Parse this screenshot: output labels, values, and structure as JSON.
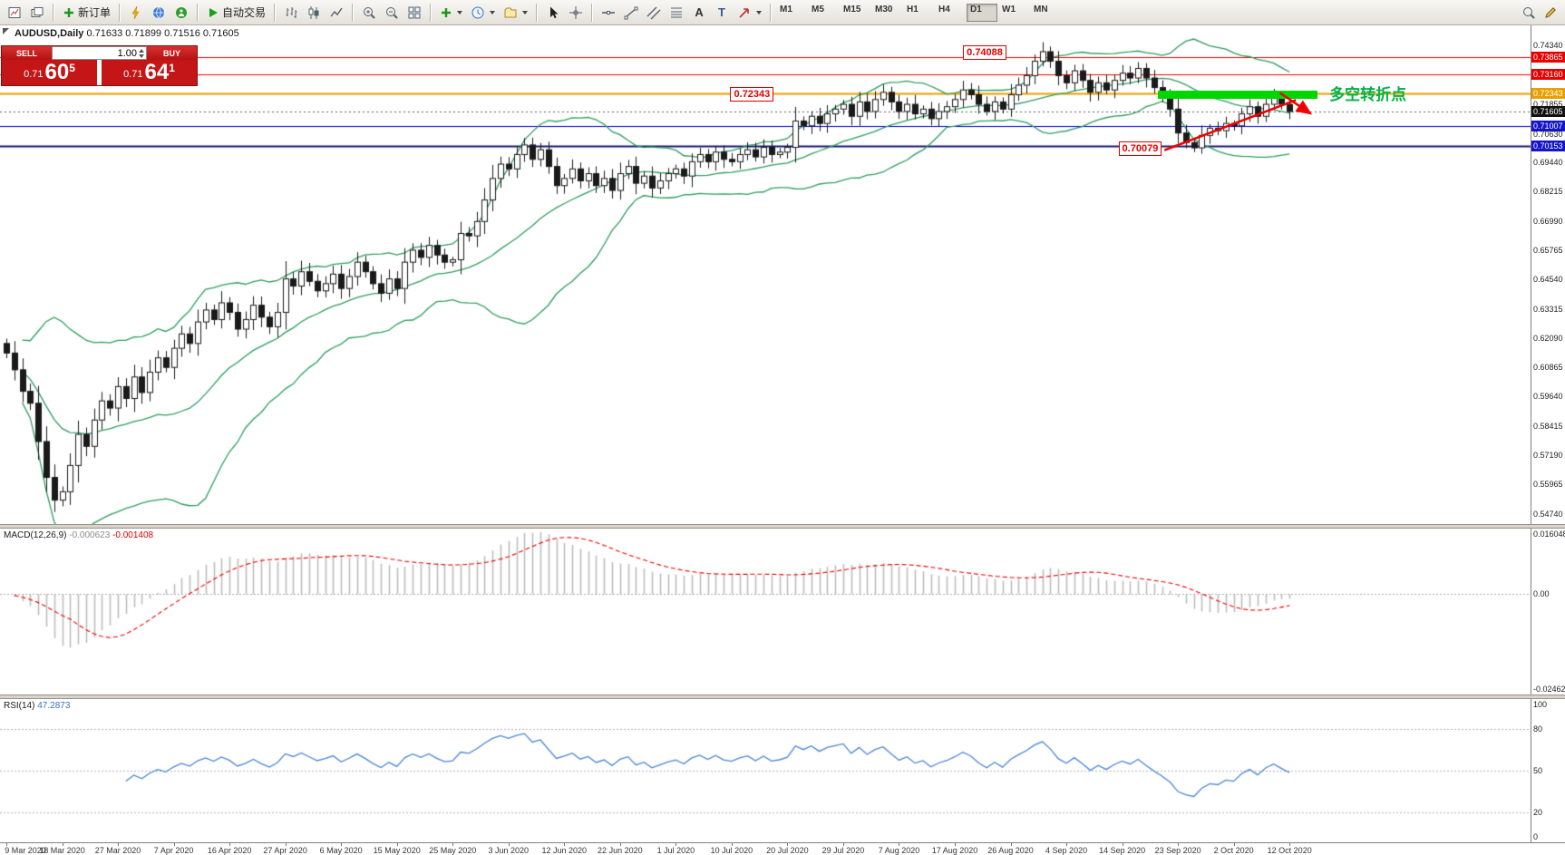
{
  "toolbar": {
    "new_order_label": "新订单",
    "autotrade_label": "自动交易",
    "timeframes": [
      "M1",
      "M5",
      "M15",
      "M30",
      "H1",
      "H4",
      "D1",
      "W1",
      "MN"
    ],
    "active_timeframe": "D1"
  },
  "chart": {
    "symbol_title": "AUDUSD,Daily",
    "ohlc": "0.71633 0.71899 0.71516 0.71605"
  },
  "trade_panel": {
    "sell_label": "SELL",
    "buy_label": "BUY",
    "volume": "1.00",
    "sell_price_main": "0.71",
    "sell_price_big": "60",
    "sell_price_sup": "5",
    "buy_price_main": "0.71",
    "buy_price_big": "64",
    "buy_price_sup": "1"
  },
  "hlines": [
    {
      "price": 0.73865,
      "color": "#f00000",
      "width": 1
    },
    {
      "price": 0.7316,
      "color": "#f00000",
      "width": 1
    },
    {
      "price": 0.72343,
      "color": "#e8a000",
      "width": 2
    },
    {
      "price": 0.71605,
      "color": "#606060",
      "width": 1,
      "dash": [
        2,
        3
      ]
    },
    {
      "price": 0.71007,
      "color": "#0000d8",
      "width": 1
    },
    {
      "price": 0.70153,
      "color": "#1a1a6e",
      "width": 2
    }
  ],
  "scale": {
    "chart_labels": [
      {
        "text": "0.74340",
        "price": 0.7434,
        "style": "plain"
      },
      {
        "text": "0.73865",
        "price": 0.73865,
        "style": "red"
      },
      {
        "text": "0.73160",
        "price": 0.7316,
        "style": "red"
      },
      {
        "text": "0.72343",
        "price": 0.72343,
        "style": "orange"
      },
      {
        "text": "0.71855",
        "price": 0.71855,
        "style": "plain"
      },
      {
        "text": "0.71605",
        "price": 0.71605,
        "style": "black"
      },
      {
        "text": "0.71007",
        "price": 0.71007,
        "style": "blue"
      },
      {
        "text": "0.70630",
        "price": 0.7063,
        "style": "plain"
      },
      {
        "text": "0.70153",
        "price": 0.70153,
        "style": "blue"
      },
      {
        "text": "0.69440",
        "price": 0.6944,
        "style": "plain"
      },
      {
        "text": "0.68215",
        "price": 0.68215,
        "style": "plain"
      },
      {
        "text": "0.66990",
        "price": 0.6699,
        "style": "plain"
      },
      {
        "text": "0.65765",
        "price": 0.65765,
        "style": "plain"
      },
      {
        "text": "0.64540",
        "price": 0.6454,
        "style": "plain"
      },
      {
        "text": "0.63315",
        "price": 0.63315,
        "style": "plain"
      },
      {
        "text": "0.62090",
        "price": 0.6209,
        "style": "plain"
      },
      {
        "text": "0.60865",
        "price": 0.60865,
        "style": "plain"
      },
      {
        "text": "0.59640",
        "price": 0.5964,
        "style": "plain"
      },
      {
        "text": "0.58415",
        "price": 0.58415,
        "style": "plain"
      },
      {
        "text": "0.57190",
        "price": 0.5719,
        "style": "plain"
      },
      {
        "text": "0.55965",
        "price": 0.55965,
        "style": "plain"
      },
      {
        "text": "0.54740",
        "price": 0.5474,
        "style": "plain"
      }
    ]
  },
  "macd": {
    "label": "MACD(12,26,9)",
    "value1": "-0.000623",
    "value2": "-0.001408",
    "axis_range": [
      -0.0252,
      0.0165
    ],
    "scale_labels": [
      {
        "text": "0.016048",
        "value": 0.016048
      },
      {
        "text": "0.00",
        "value": 0
      },
      {
        "text": "-0.024625",
        "value": -0.024625
      }
    ]
  },
  "rsi": {
    "label": "RSI(14)",
    "value": "47.2873",
    "levels": [
      {
        "text": "100",
        "value": 100
      },
      {
        "text": "80",
        "value": 80
      },
      {
        "text": "50",
        "value": 50
      },
      {
        "text": "20",
        "value": 20
      },
      {
        "text": "0",
        "value": 0
      }
    ],
    "level_lines": [
      80,
      50,
      20
    ]
  },
  "annotations": {
    "labels": [
      {
        "text": "0.74088",
        "price": 0.74088,
        "anchor_bar": 125.5
      },
      {
        "text": "0.72343",
        "price": 0.72343,
        "anchor_bar": 96.3
      },
      {
        "text": "0.70079",
        "price": 0.70079,
        "anchor_bar": 145.0
      }
    ],
    "note_text": "多空转折点",
    "note_color": "#00b244",
    "note_bar": 166,
    "note_price": 0.7243,
    "green_bar": {
      "bar_start": 144.5,
      "bar_end": 164.5,
      "price_top": 0.7246,
      "price_bottom": 0.7212,
      "color": "#00d600"
    },
    "trend_line": {
      "bar1": 145.3,
      "price1": 0.6998,
      "bar2": 161.8,
      "price2": 0.7208,
      "color": "#f00000"
    },
    "reject_arrow": {
      "bar1": 159.8,
      "price1": 0.7238,
      "bar2": 163.6,
      "price2": 0.7152,
      "color": "#f00000"
    }
  },
  "x_axis": {
    "bars_per_label": 7,
    "dates": [
      "9 Mar 2020",
      "18 Mar 2020",
      "27 Mar 2020",
      "7 Apr 2020",
      "16 Apr 2020",
      "27 Apr 2020",
      "6 May 2020",
      "15 May 2020",
      "25 May 2020",
      "3 Jun 2020",
      "12 Jun 2020",
      "22 Jun 2020",
      "1 Jul 2020",
      "10 Jul 2020",
      "20 Jul 2020",
      "29 Jul 2020",
      "7 Aug 2020",
      "17 Aug 2020",
      "26 Aug 2020",
      "4 Sep 2020",
      "14 Sep 2020",
      "23 Sep 2020",
      "2 Oct 2020",
      "12 Oct 2020"
    ]
  },
  "chart_data": {
    "type": "candlestick",
    "symbol": "AUDUSD",
    "timeframe": "Daily",
    "price_range": [
      0.5435,
      0.752
    ],
    "indicators": {
      "bollinger": {
        "period": 20,
        "deviation": 2
      },
      "macd": {
        "fast": 12,
        "slow": 26,
        "signal": 9
      },
      "rsi": {
        "period": 14
      }
    },
    "key_prices": {
      "swing_high": 0.74088,
      "pivot": 0.72343,
      "swing_low": 0.70079,
      "bid": 0.71605
    },
    "closes": [
      0.615,
      0.608,
      0.599,
      0.594,
      0.578,
      0.563,
      0.5535,
      0.557,
      0.568,
      0.581,
      0.576,
      0.587,
      0.595,
      0.592,
      0.601,
      0.596,
      0.605,
      0.5985,
      0.607,
      0.613,
      0.609,
      0.617,
      0.623,
      0.619,
      0.628,
      0.633,
      0.629,
      0.636,
      0.632,
      0.625,
      0.629,
      0.635,
      0.63,
      0.626,
      0.632,
      0.646,
      0.643,
      0.649,
      0.645,
      0.641,
      0.644,
      0.648,
      0.642,
      0.647,
      0.653,
      0.649,
      0.644,
      0.64,
      0.646,
      0.642,
      0.653,
      0.658,
      0.655,
      0.66,
      0.656,
      0.653,
      0.654,
      0.665,
      0.664,
      0.67,
      0.679,
      0.688,
      0.694,
      0.692,
      0.698,
      0.702,
      0.696,
      0.7,
      0.693,
      0.685,
      0.688,
      0.692,
      0.687,
      0.69,
      0.685,
      0.688,
      0.683,
      0.69,
      0.693,
      0.686,
      0.689,
      0.684,
      0.687,
      0.69,
      0.692,
      0.689,
      0.695,
      0.698,
      0.695,
      0.699,
      0.696,
      0.695,
      0.698,
      0.7,
      0.697,
      0.701,
      0.698,
      0.699,
      0.701,
      0.712,
      0.71,
      0.714,
      0.711,
      0.715,
      0.717,
      0.719,
      0.714,
      0.72,
      0.716,
      0.721,
      0.724,
      0.72,
      0.716,
      0.719,
      0.715,
      0.717,
      0.713,
      0.716,
      0.718,
      0.721,
      0.725,
      0.723,
      0.719,
      0.716,
      0.72,
      0.717,
      0.723,
      0.727,
      0.731,
      0.737,
      0.741,
      0.737,
      0.731,
      0.728,
      0.733,
      0.729,
      0.724,
      0.728,
      0.725,
      0.729,
      0.732,
      0.73,
      0.734,
      0.73,
      0.726,
      0.722,
      0.717,
      0.707,
      0.703,
      0.7008,
      0.706,
      0.709,
      0.708,
      0.711,
      0.71,
      0.715,
      0.718,
      0.714,
      0.719,
      0.722,
      0.719,
      0.716
    ]
  }
}
